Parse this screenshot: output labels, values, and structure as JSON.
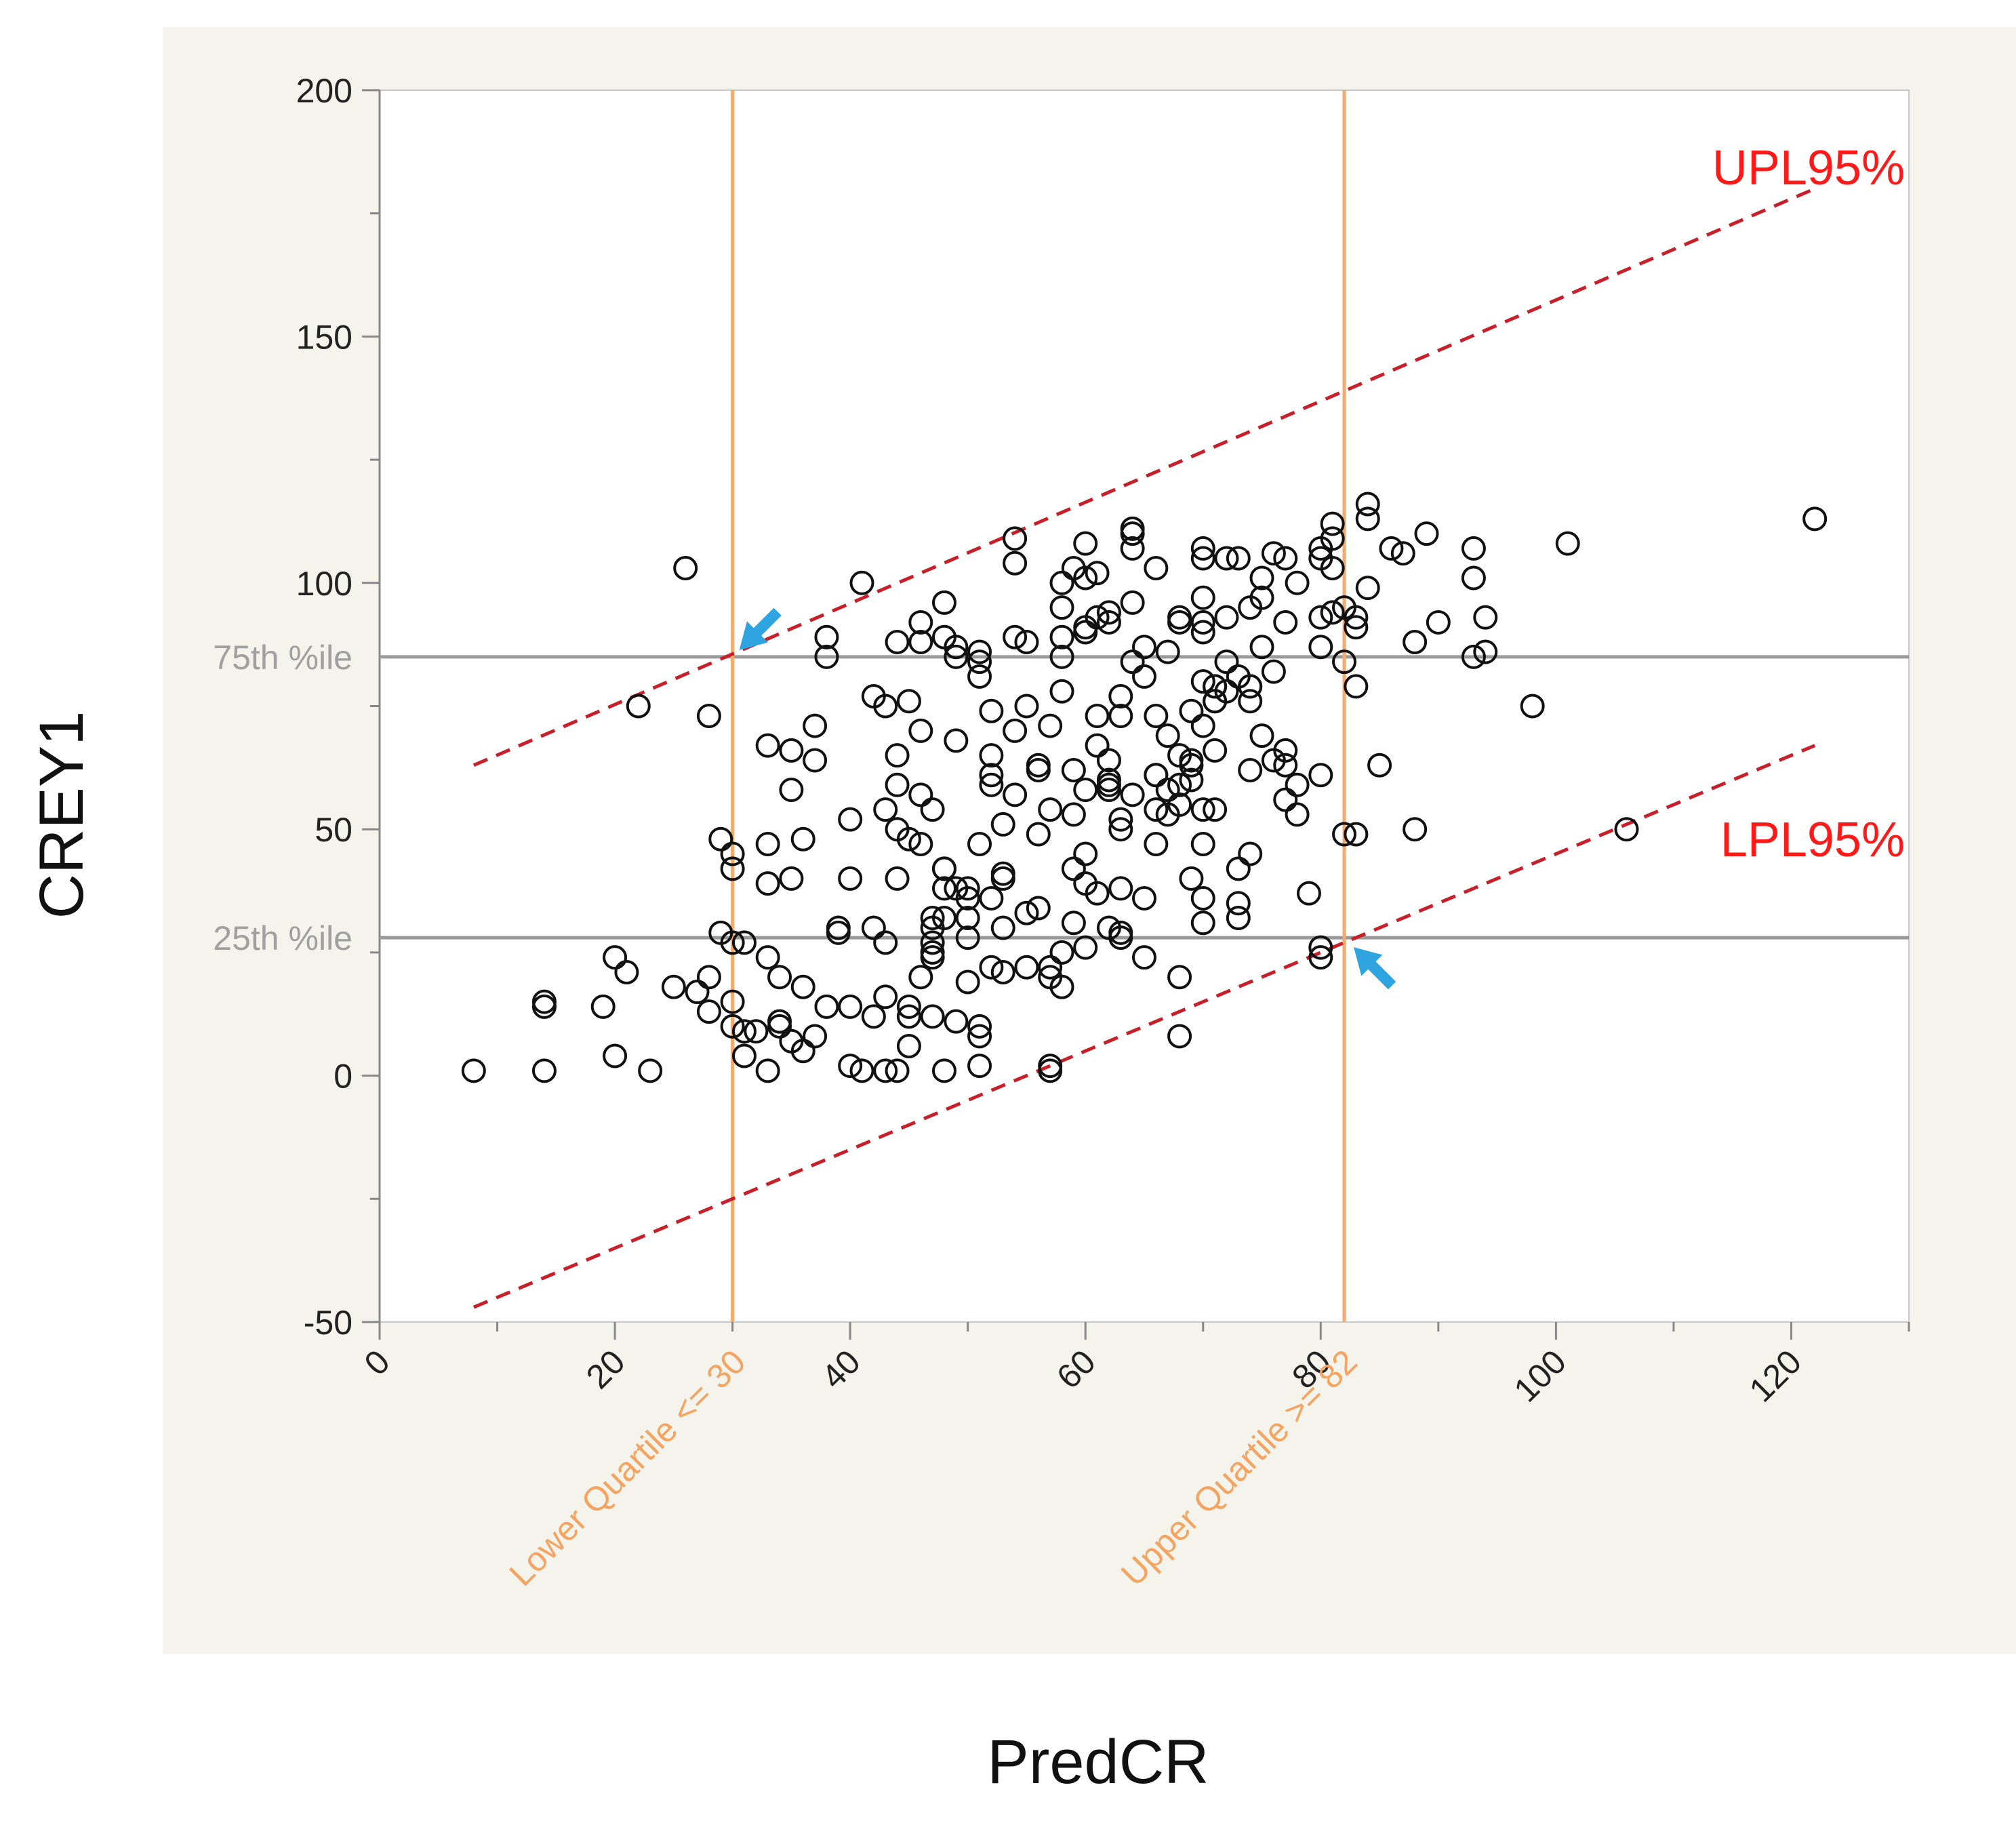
{
  "chart_data": {
    "type": "scatter",
    "xlabel": "PredCR",
    "ylabel": "CREY1",
    "xlim": [
      0,
      130
    ],
    "ylim": [
      -50,
      200
    ],
    "x_ticks": [
      0,
      20,
      40,
      60,
      80,
      100,
      120
    ],
    "x_tick_labels": [
      "0",
      "20",
      "40",
      "60",
      "80",
      "100",
      "120"
    ],
    "y_ticks": [
      -50,
      0,
      50,
      100,
      150,
      200
    ],
    "y_tick_labels": [
      "-50",
      "0",
      "50",
      "100",
      "150",
      "200"
    ],
    "reference_lines": {
      "horizontal": [
        {
          "label": "75th %ile",
          "value": 85
        },
        {
          "label": "25th %ile",
          "value": 28
        }
      ],
      "vertical": [
        {
          "label": "Lower Quartile <= 30",
          "value": 30
        },
        {
          "label": "Upper Quartile >= 82",
          "value": 82
        }
      ]
    },
    "prediction_limits": [
      {
        "label": "UPL95%",
        "x": [
          8,
          122
        ],
        "y": [
          63,
          180
        ]
      },
      {
        "label": "LPL95%",
        "x": [
          8,
          122
        ],
        "y": [
          -47,
          67
        ]
      }
    ],
    "arrows": [
      {
        "x": 30,
        "y": 85,
        "direction": "down-left"
      },
      {
        "x": 82,
        "y": 28,
        "direction": "up-left"
      }
    ],
    "points": [
      [
        8,
        1
      ],
      [
        14,
        1
      ],
      [
        14,
        15
      ],
      [
        14,
        14
      ],
      [
        19,
        14
      ],
      [
        20,
        24
      ],
      [
        21,
        21
      ],
      [
        20,
        4
      ],
      [
        23,
        1
      ],
      [
        22,
        75
      ],
      [
        25,
        18
      ],
      [
        26,
        103
      ],
      [
        27,
        17
      ],
      [
        28,
        20
      ],
      [
        28,
        13
      ],
      [
        28,
        73
      ],
      [
        29,
        48
      ],
      [
        30,
        45
      ],
      [
        30,
        42
      ],
      [
        29,
        29
      ],
      [
        30,
        27
      ],
      [
        31,
        27
      ],
      [
        30,
        15
      ],
      [
        30,
        10
      ],
      [
        31,
        9
      ],
      [
        31,
        4
      ],
      [
        32,
        9
      ],
      [
        33,
        1
      ],
      [
        33,
        24
      ],
      [
        33,
        39
      ],
      [
        33,
        67
      ],
      [
        33,
        47
      ],
      [
        34,
        20
      ],
      [
        34,
        10
      ],
      [
        34,
        11
      ],
      [
        35,
        66
      ],
      [
        35,
        58
      ],
      [
        35,
        7
      ],
      [
        35,
        40
      ],
      [
        36,
        48
      ],
      [
        36,
        18
      ],
      [
        36,
        5
      ],
      [
        37,
        8
      ],
      [
        37,
        64
      ],
      [
        38,
        14
      ],
      [
        37,
        71
      ],
      [
        38,
        85
      ],
      [
        38,
        89
      ],
      [
        39,
        29
      ],
      [
        39,
        30
      ],
      [
        40,
        14
      ],
      [
        40,
        52
      ],
      [
        40,
        40
      ],
      [
        40,
        2
      ],
      [
        41,
        1
      ],
      [
        41,
        100
      ],
      [
        42,
        12
      ],
      [
        42,
        77
      ],
      [
        42,
        30
      ],
      [
        43,
        16
      ],
      [
        43,
        75
      ],
      [
        43,
        1
      ],
      [
        43,
        54
      ],
      [
        43,
        27
      ],
      [
        44,
        1
      ],
      [
        44,
        50
      ],
      [
        44,
        65
      ],
      [
        44,
        59
      ],
      [
        44,
        88
      ],
      [
        44,
        40
      ],
      [
        45,
        14
      ],
      [
        45,
        12
      ],
      [
        45,
        76
      ],
      [
        45,
        48
      ],
      [
        45,
        6
      ],
      [
        46,
        88
      ],
      [
        46,
        57
      ],
      [
        46,
        92
      ],
      [
        46,
        47
      ],
      [
        46,
        70
      ],
      [
        47,
        54
      ],
      [
        47,
        12
      ],
      [
        46,
        20
      ],
      [
        47,
        30
      ],
      [
        47,
        25
      ],
      [
        47,
        27
      ],
      [
        47,
        32
      ],
      [
        47,
        24
      ],
      [
        48,
        38
      ],
      [
        48,
        89
      ],
      [
        48,
        96
      ],
      [
        48,
        1
      ],
      [
        48,
        32
      ],
      [
        48,
        42
      ],
      [
        48,
        42
      ],
      [
        49,
        85
      ],
      [
        49,
        87
      ],
      [
        49,
        68
      ],
      [
        49,
        38
      ],
      [
        49,
        11
      ],
      [
        50,
        36
      ],
      [
        50,
        38
      ],
      [
        50,
        28
      ],
      [
        50,
        19
      ],
      [
        50,
        32
      ],
      [
        51,
        47
      ],
      [
        51,
        81
      ],
      [
        51,
        84
      ],
      [
        51,
        86
      ],
      [
        51,
        10
      ],
      [
        51,
        8
      ],
      [
        51,
        2
      ],
      [
        52,
        74
      ],
      [
        52,
        65
      ],
      [
        52,
        61
      ],
      [
        52,
        22
      ],
      [
        52,
        36
      ],
      [
        52,
        59
      ],
      [
        53,
        21
      ],
      [
        53,
        40
      ],
      [
        53,
        51
      ],
      [
        53,
        30
      ],
      [
        53,
        41
      ],
      [
        54,
        104
      ],
      [
        54,
        109
      ],
      [
        54,
        89
      ],
      [
        54,
        57
      ],
      [
        54,
        70
      ],
      [
        55,
        33
      ],
      [
        55,
        22
      ],
      [
        55,
        88
      ],
      [
        55,
        75
      ],
      [
        56,
        49
      ],
      [
        56,
        62
      ],
      [
        56,
        63
      ],
      [
        56,
        34
      ],
      [
        57,
        71
      ],
      [
        57,
        54
      ],
      [
        57,
        22
      ],
      [
        57,
        20
      ],
      [
        57,
        1
      ],
      [
        57,
        2
      ],
      [
        58,
        78
      ],
      [
        58,
        95
      ],
      [
        58,
        89
      ],
      [
        58,
        100
      ],
      [
        58,
        85
      ],
      [
        58,
        18
      ],
      [
        58,
        25
      ],
      [
        59,
        53
      ],
      [
        59,
        42
      ],
      [
        59,
        103
      ],
      [
        59,
        31
      ],
      [
        59,
        62
      ],
      [
        60,
        108
      ],
      [
        60,
        101
      ],
      [
        60,
        91
      ],
      [
        60,
        90
      ],
      [
        60,
        26
      ],
      [
        60,
        39
      ],
      [
        60,
        45
      ],
      [
        60,
        58
      ],
      [
        61,
        67
      ],
      [
        61,
        73
      ],
      [
        61,
        93
      ],
      [
        61,
        102
      ],
      [
        61,
        37
      ],
      [
        62,
        92
      ],
      [
        62,
        94
      ],
      [
        62,
        60
      ],
      [
        62,
        64
      ],
      [
        62,
        58
      ],
      [
        62,
        59
      ],
      [
        62,
        30
      ],
      [
        63,
        77
      ],
      [
        63,
        52
      ],
      [
        63,
        73
      ],
      [
        63,
        50
      ],
      [
        63,
        38
      ],
      [
        63,
        28
      ],
      [
        63,
        29
      ],
      [
        64,
        111
      ],
      [
        64,
        107
      ],
      [
        64,
        110
      ],
      [
        64,
        96
      ],
      [
        64,
        84
      ],
      [
        64,
        57
      ],
      [
        65,
        87
      ],
      [
        65,
        36
      ],
      [
        65,
        24
      ],
      [
        65,
        81
      ],
      [
        66,
        103
      ],
      [
        66,
        73
      ],
      [
        66,
        61
      ],
      [
        66,
        61
      ],
      [
        66,
        54
      ],
      [
        66,
        47
      ],
      [
        67,
        86
      ],
      [
        67,
        69
      ],
      [
        67,
        53
      ],
      [
        67,
        58
      ],
      [
        68,
        92
      ],
      [
        68,
        65
      ],
      [
        68,
        59
      ],
      [
        68,
        55
      ],
      [
        68,
        20
      ],
      [
        68,
        8
      ],
      [
        68,
        93
      ],
      [
        69,
        60
      ],
      [
        69,
        74
      ],
      [
        69,
        63
      ],
      [
        69,
        64
      ],
      [
        69,
        40
      ],
      [
        70,
        107
      ],
      [
        70,
        105
      ],
      [
        70,
        92
      ],
      [
        70,
        80
      ],
      [
        70,
        97
      ],
      [
        70,
        90
      ],
      [
        70,
        71
      ],
      [
        70,
        31
      ],
      [
        70,
        36
      ],
      [
        70,
        47
      ],
      [
        70,
        54
      ],
      [
        71,
        79
      ],
      [
        71,
        79
      ],
      [
        71,
        76
      ],
      [
        71,
        66
      ],
      [
        71,
        76
      ],
      [
        71,
        54
      ],
      [
        72,
        105
      ],
      [
        72,
        93
      ],
      [
        72,
        84
      ],
      [
        72,
        78
      ],
      [
        73,
        105
      ],
      [
        73,
        81
      ],
      [
        73,
        42
      ],
      [
        73,
        32
      ],
      [
        73,
        35
      ],
      [
        74,
        95
      ],
      [
        74,
        79
      ],
      [
        74,
        76
      ],
      [
        74,
        79
      ],
      [
        74,
        62
      ],
      [
        74,
        45
      ],
      [
        75,
        101
      ],
      [
        75,
        87
      ],
      [
        75,
        97
      ],
      [
        75,
        69
      ],
      [
        76,
        106
      ],
      [
        76,
        82
      ],
      [
        76,
        64
      ],
      [
        77,
        105
      ],
      [
        77,
        92
      ],
      [
        77,
        66
      ],
      [
        77,
        63
      ],
      [
        77,
        56
      ],
      [
        78,
        100
      ],
      [
        78,
        59
      ],
      [
        78,
        53
      ],
      [
        79,
        37
      ],
      [
        80,
        93
      ],
      [
        80,
        107
      ],
      [
        80,
        105
      ],
      [
        80,
        87
      ],
      [
        80,
        61
      ],
      [
        80,
        26
      ],
      [
        80,
        24
      ],
      [
        81,
        103
      ],
      [
        81,
        112
      ],
      [
        81,
        109
      ],
      [
        81,
        94
      ],
      [
        82,
        95
      ],
      [
        82,
        84
      ],
      [
        82,
        49
      ],
      [
        83,
        93
      ],
      [
        83,
        91
      ],
      [
        83,
        79
      ],
      [
        83,
        49
      ],
      [
        84,
        99
      ],
      [
        84,
        116
      ],
      [
        84,
        113
      ],
      [
        85,
        63
      ],
      [
        86,
        107
      ],
      [
        87,
        106
      ],
      [
        88,
        50
      ],
      [
        88,
        88
      ],
      [
        89,
        110
      ],
      [
        90,
        92
      ],
      [
        93,
        107
      ],
      [
        93,
        101
      ],
      [
        93,
        85
      ],
      [
        94,
        93
      ],
      [
        94,
        86
      ],
      [
        98,
        75
      ],
      [
        101,
        108
      ],
      [
        106,
        50
      ],
      [
        122,
        113
      ]
    ]
  }
}
